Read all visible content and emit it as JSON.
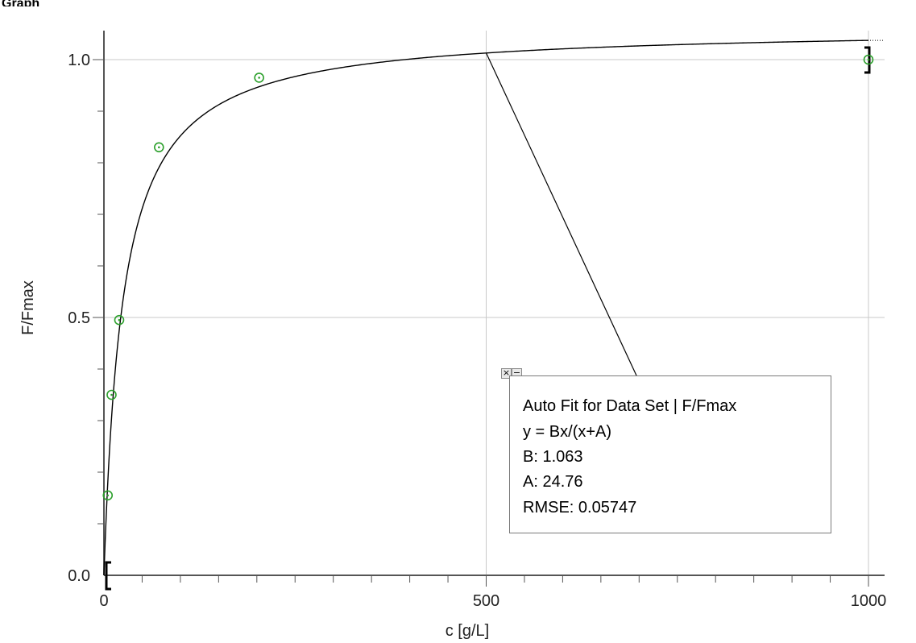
{
  "window": {
    "title": "Graph"
  },
  "chart_data": {
    "type": "scatter",
    "xlabel": "c [g/L]",
    "ylabel": "F/Fmax",
    "xlim": [
      0,
      1000
    ],
    "ylim": [
      0.0,
      1.0
    ],
    "x_ticks": [
      0,
      500,
      1000
    ],
    "y_ticks": [
      "0.0",
      "0.5",
      "1.0"
    ],
    "grid": true,
    "series": [
      {
        "type": "scatter",
        "marker_color": "#2ca02c",
        "x": [
          5,
          10,
          20,
          72,
          203,
          1000
        ],
        "y": [
          0.155,
          0.35,
          0.495,
          0.83,
          0.965,
          1.0
        ]
      },
      {
        "type": "line",
        "color": "#000000",
        "fit": {
          "B": 1.063,
          "A": 24.76
        }
      }
    ],
    "annotation": {
      "anchor_x": 500,
      "lines": [
        "Auto Fit for  Data Set | F/Fmax",
        "y = Bx/(x+A)",
        "B: 1.063",
        "A: 24.76",
        "RMSE: 0.05747"
      ]
    }
  },
  "controls": {
    "close_glyph": "×",
    "minimize_glyph": "−"
  }
}
